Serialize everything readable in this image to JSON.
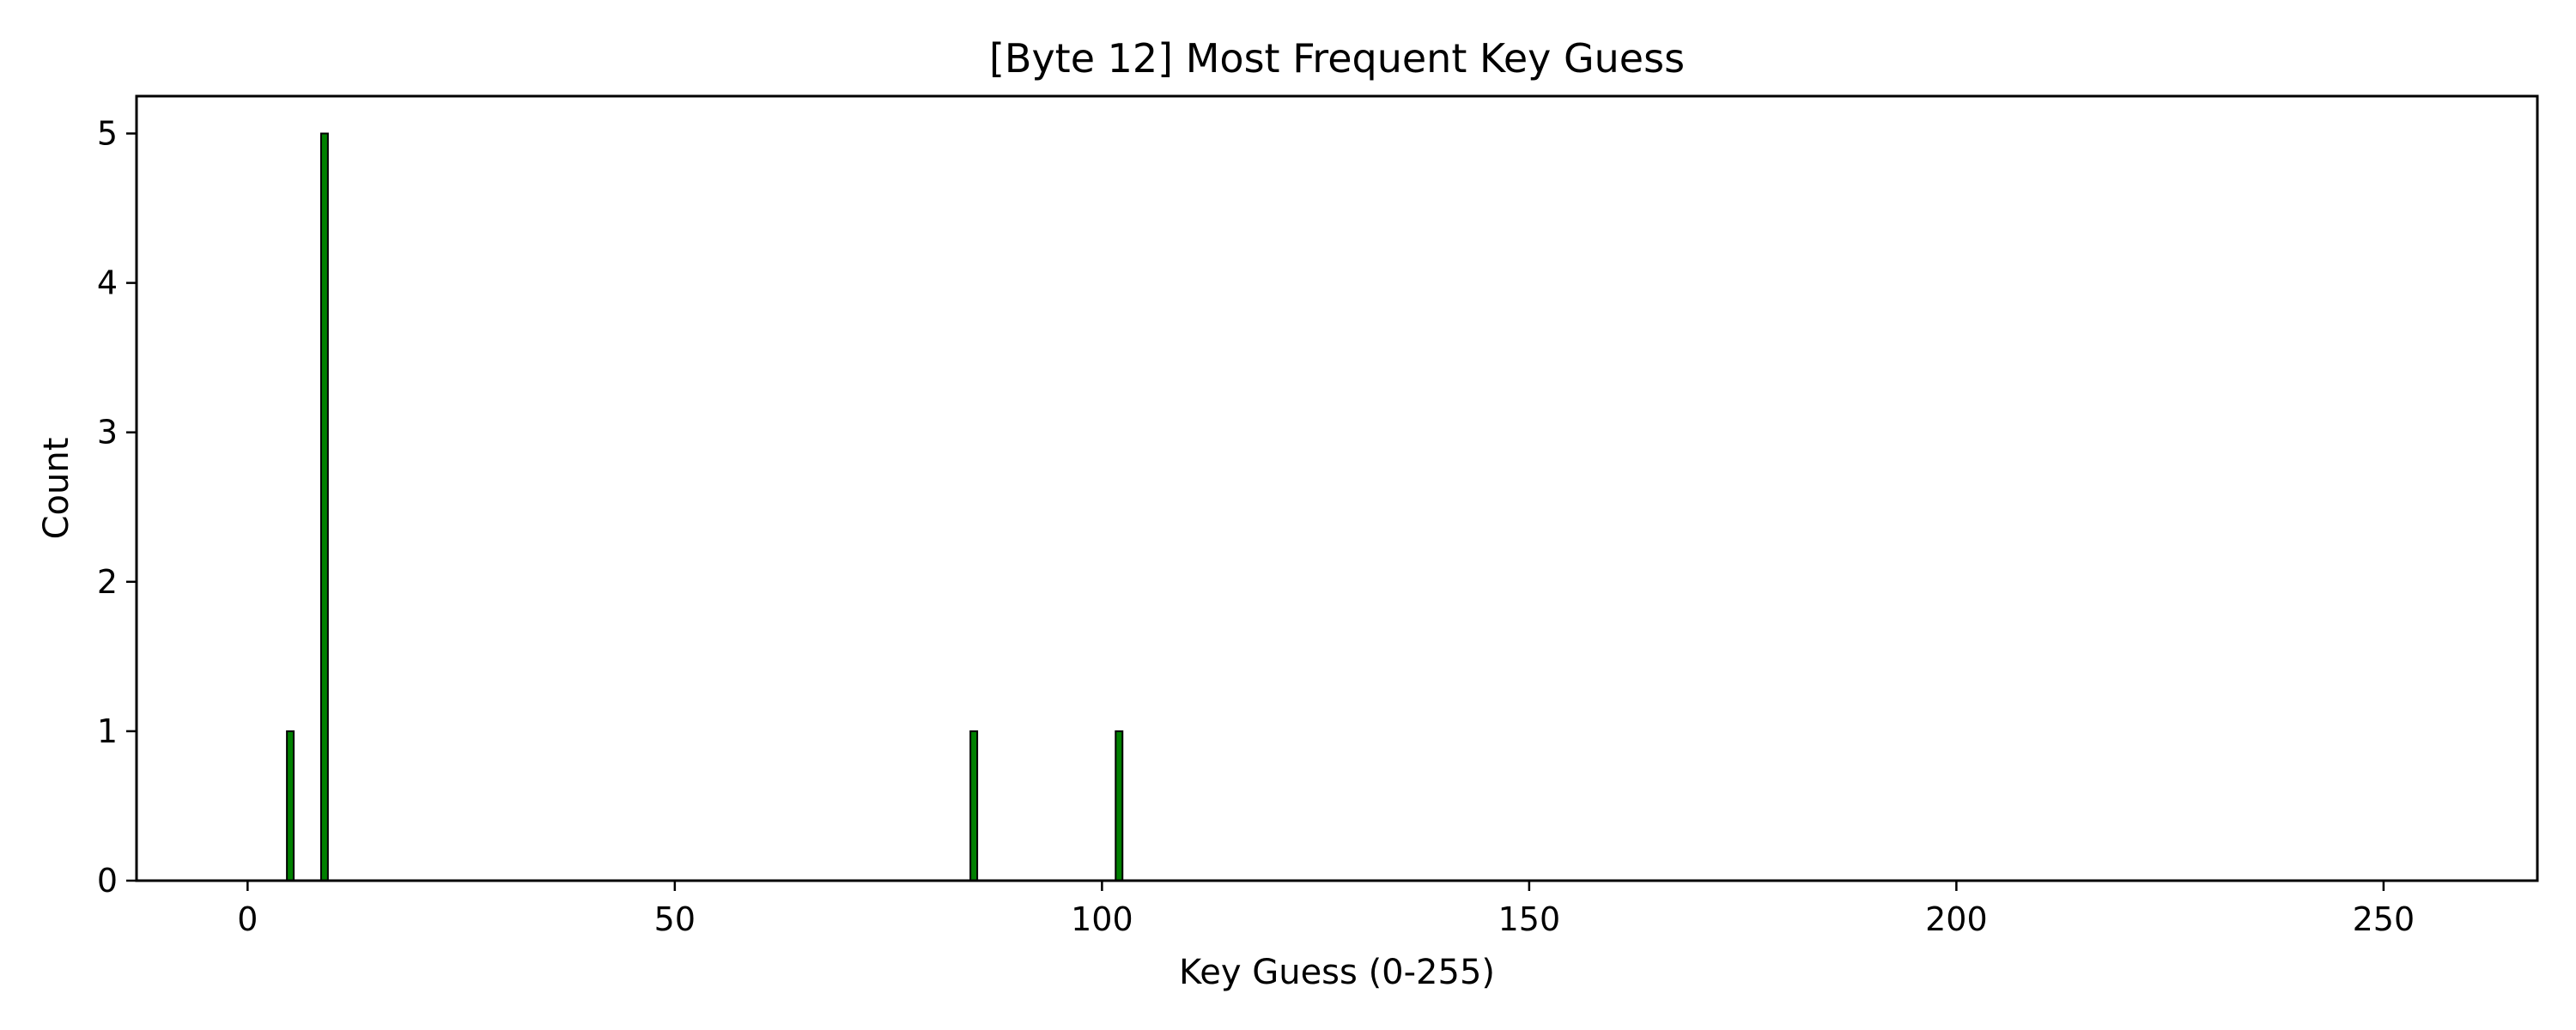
{
  "chart_data": {
    "type": "bar",
    "title": "[Byte 12] Most Frequent Key Guess",
    "xlabel": "Key Guess (0-255)",
    "ylabel": "Count",
    "xlim": [
      -13,
      268
    ],
    "ylim": [
      0,
      5.25
    ],
    "xticks": [
      0,
      50,
      100,
      150,
      200,
      250
    ],
    "yticks": [
      0,
      1,
      2,
      3,
      4,
      5
    ],
    "x_range": [
      0,
      255
    ],
    "nonzero": [
      {
        "x": 5,
        "value": 1
      },
      {
        "x": 9,
        "value": 5
      },
      {
        "x": 85,
        "value": 1
      },
      {
        "x": 102,
        "value": 1
      }
    ],
    "bar_color": "#008000",
    "edge_color": "#000000",
    "grid": false,
    "legend": "none"
  }
}
